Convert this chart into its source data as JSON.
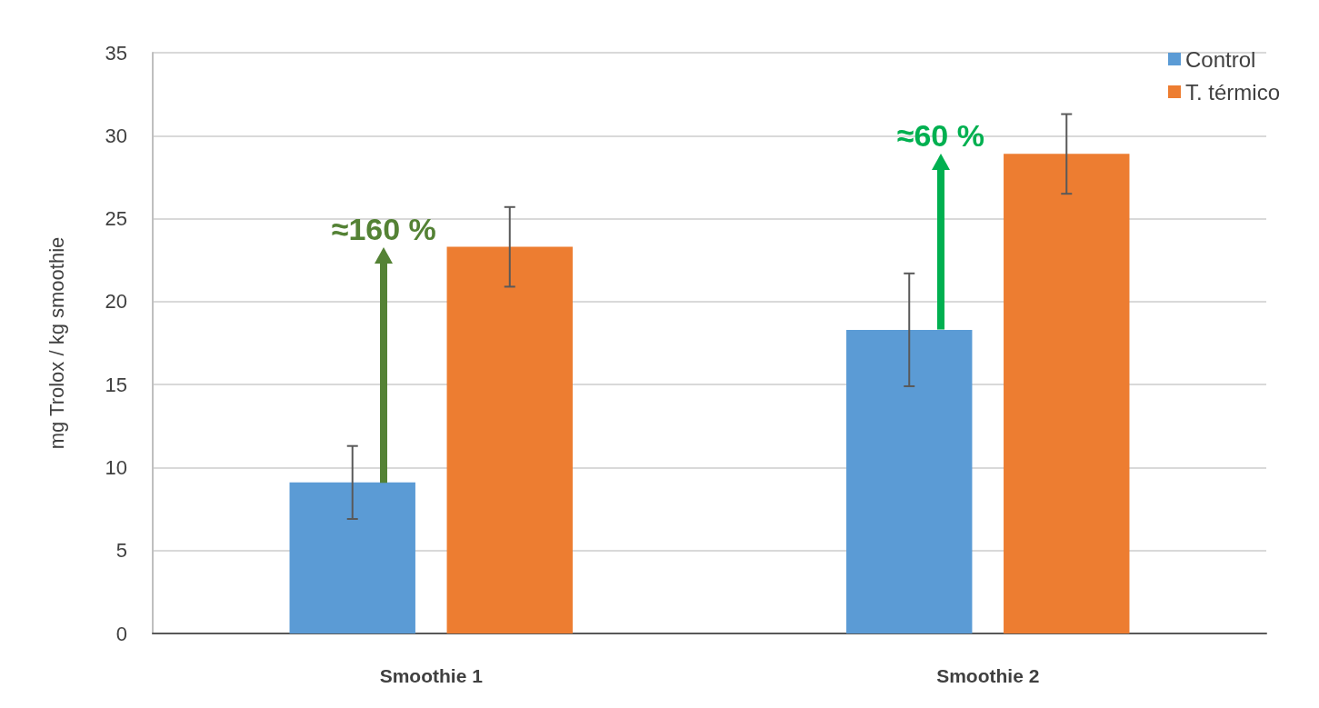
{
  "chart_data": {
    "type": "bar",
    "ylabel": "mg Trolox / kg smoothie",
    "categories": [
      "Smoothie 1",
      "Smoothie 2"
    ],
    "series": [
      {
        "name": "Control",
        "color": "#5b9bd5",
        "values": [
          9.1,
          18.3
        ],
        "errors": [
          2.2,
          3.4
        ]
      },
      {
        "name": "T. térmico",
        "color": "#ed7d31",
        "values": [
          23.3,
          28.9
        ],
        "errors": [
          2.4,
          2.4
        ]
      }
    ],
    "ylim": [
      0,
      35
    ],
    "yticks": [
      0,
      5,
      10,
      15,
      20,
      25,
      30,
      35
    ],
    "grid": "y",
    "legend": "top right",
    "annotations": [
      "≈160 %",
      "≈60 %"
    ]
  }
}
